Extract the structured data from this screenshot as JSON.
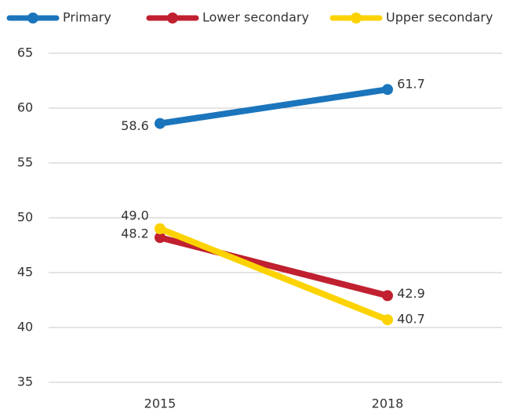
{
  "chart_data": {
    "type": "line",
    "x": [
      "2015",
      "2018"
    ],
    "series": [
      {
        "name": "Primary",
        "color": "#1b75bc",
        "values": [
          58.6,
          61.7
        ],
        "value_labels": [
          "58.6",
          "61.7"
        ]
      },
      {
        "name": "Lower secondary",
        "color": "#c0202f",
        "values": [
          48.2,
          42.9
        ],
        "value_labels": [
          "48.2",
          "42.9"
        ]
      },
      {
        "name": "Upper secondary",
        "color": "#fcd200",
        "values": [
          49.0,
          40.7
        ],
        "value_labels": [
          "49.0",
          "40.7"
        ]
      }
    ],
    "ylim": [
      35,
      65
    ],
    "yticks": [
      35,
      40,
      45,
      50,
      55,
      60,
      65
    ],
    "grid": true,
    "legend": "top"
  }
}
